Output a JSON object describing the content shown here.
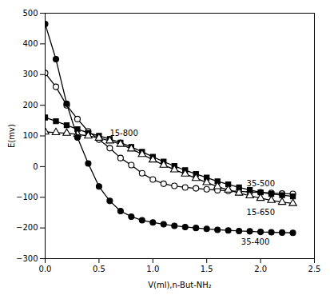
{
  "chart_data": {
    "type": "line",
    "xlabel": "V(ml),n-But-NH₂",
    "ylabel": "E(mv)",
    "xlim": [
      0,
      2.5
    ],
    "ylim": [
      -300,
      500
    ],
    "xticks": [
      {
        "value": 0,
        "label": "0.0"
      },
      0.5,
      {
        "value": 1,
        "label": "1.0"
      },
      1.5,
      {
        "value": 2,
        "label": "2.0"
      },
      2.5
    ],
    "yticks": [
      -300,
      -200,
      -100,
      0,
      100,
      200,
      300,
      400,
      500
    ],
    "grid": false,
    "x": [
      0.0,
      0.1,
      0.2,
      0.3,
      0.4,
      0.5,
      0.6,
      0.7,
      0.8,
      0.9,
      1.0,
      1.1,
      1.2,
      1.3,
      1.4,
      1.5,
      1.6,
      1.7,
      1.8,
      1.9,
      2.0,
      2.1,
      2.2,
      2.3
    ],
    "series": [
      {
        "color": "black",
        "marker": "circle-open",
        "values": [
          305,
          260,
          200,
          155,
          115,
          88,
          60,
          28,
          5,
          -22,
          -42,
          -56,
          -63,
          -68,
          -71,
          -74,
          -77,
          -79,
          -81,
          -83,
          -84,
          -86,
          -88,
          -89
        ]
      },
      {
        "color": "black",
        "marker": "square",
        "values": [
          160,
          148,
          135,
          122,
          110,
          100,
          90,
          78,
          64,
          48,
          32,
          16,
          2,
          -12,
          -24,
          -36,
          -48,
          -58,
          -68,
          -76,
          -84,
          -89,
          -93,
          -97
        ]
      },
      {
        "color": "black",
        "marker": "triangle-open",
        "values": [
          113,
          111,
          109,
          105,
          100,
          93,
          84,
          73,
          58,
          40,
          22,
          5,
          -10,
          -24,
          -38,
          -52,
          -65,
          -76,
          -86,
          -95,
          -103,
          -110,
          -116,
          -120
        ]
      },
      {
        "color": "black",
        "marker": "circle",
        "values": [
          465,
          350,
          205,
          95,
          10,
          -65,
          -112,
          -145,
          -163,
          -175,
          -182,
          -188,
          -193,
          -197,
          -200,
          -203,
          -206,
          -208,
          -210,
          -211,
          -213,
          -214,
          -215,
          -216
        ]
      }
    ],
    "annotations": [
      {
        "text": "15-800",
        "x": 0.6,
        "y": 108
      },
      {
        "text": "35-500",
        "x": 1.87,
        "y": -55
      },
      {
        "text": "15-650",
        "x": 1.87,
        "y": -150
      },
      {
        "text": "35-400",
        "x": 1.82,
        "y": -247
      }
    ]
  }
}
